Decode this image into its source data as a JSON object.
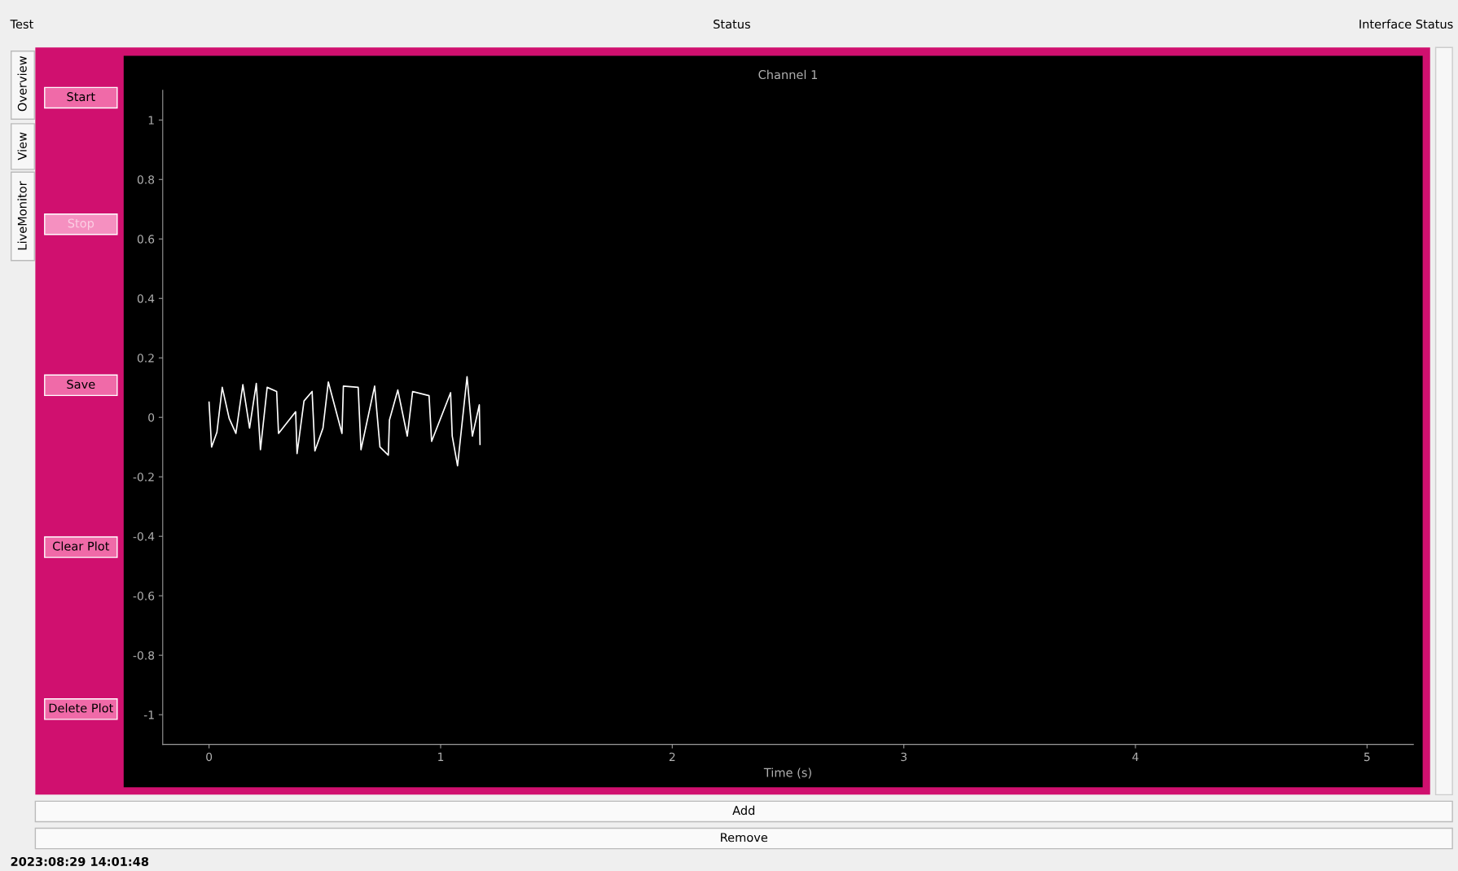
{
  "chart_data": {
    "type": "line",
    "title": "Channel 1",
    "xlabel": "Time (s)",
    "x": [
      0.0,
      0.011,
      0.034,
      0.057,
      0.087,
      0.116,
      0.146,
      0.175,
      0.204,
      0.222,
      0.251,
      0.292,
      0.3,
      0.374,
      0.38,
      0.41,
      0.445,
      0.457,
      0.492,
      0.515,
      0.574,
      0.58,
      0.644,
      0.656,
      0.715,
      0.738,
      0.774,
      0.779,
      0.815,
      0.856,
      0.879,
      0.95,
      0.961,
      1.043,
      1.05,
      1.073,
      1.114,
      1.137,
      1.167,
      1.17
    ],
    "series": [
      {
        "color": "#ffffff",
        "values": [
          0.051,
          -0.1,
          -0.05,
          0.101,
          -0.004,
          -0.054,
          0.11,
          -0.036,
          0.114,
          -0.109,
          0.101,
          0.087,
          -0.054,
          0.019,
          -0.122,
          0.055,
          0.087,
          -0.113,
          -0.036,
          0.119,
          -0.054,
          0.105,
          0.101,
          -0.109,
          0.105,
          -0.1,
          -0.127,
          -0.009,
          0.092,
          -0.063,
          0.087,
          0.073,
          -0.081,
          0.083,
          -0.063,
          -0.163,
          0.137,
          -0.063,
          0.042,
          -0.091
        ]
      }
    ],
    "xlim": [
      -0.2,
      5.2
    ],
    "ylim": [
      -1.1,
      1.1
    ],
    "xticks": [
      0,
      1,
      2,
      3,
      4,
      5
    ],
    "yticks": [
      -1,
      -0.8,
      -0.6,
      -0.4,
      -0.2,
      0,
      0.2,
      0.4,
      0.6,
      0.8,
      1
    ],
    "grid": false,
    "marker": "none",
    "line_style": "solid",
    "annotations": [
      "Test",
      "Status",
      "Interface Status",
      "Overview",
      "View",
      "LiveMonitor",
      "Start",
      "Stop",
      "Save",
      "Clear Plot",
      "Delete Plot",
      "Add",
      "Remove",
      "2023:08:29 14:01:48"
    ]
  }
}
